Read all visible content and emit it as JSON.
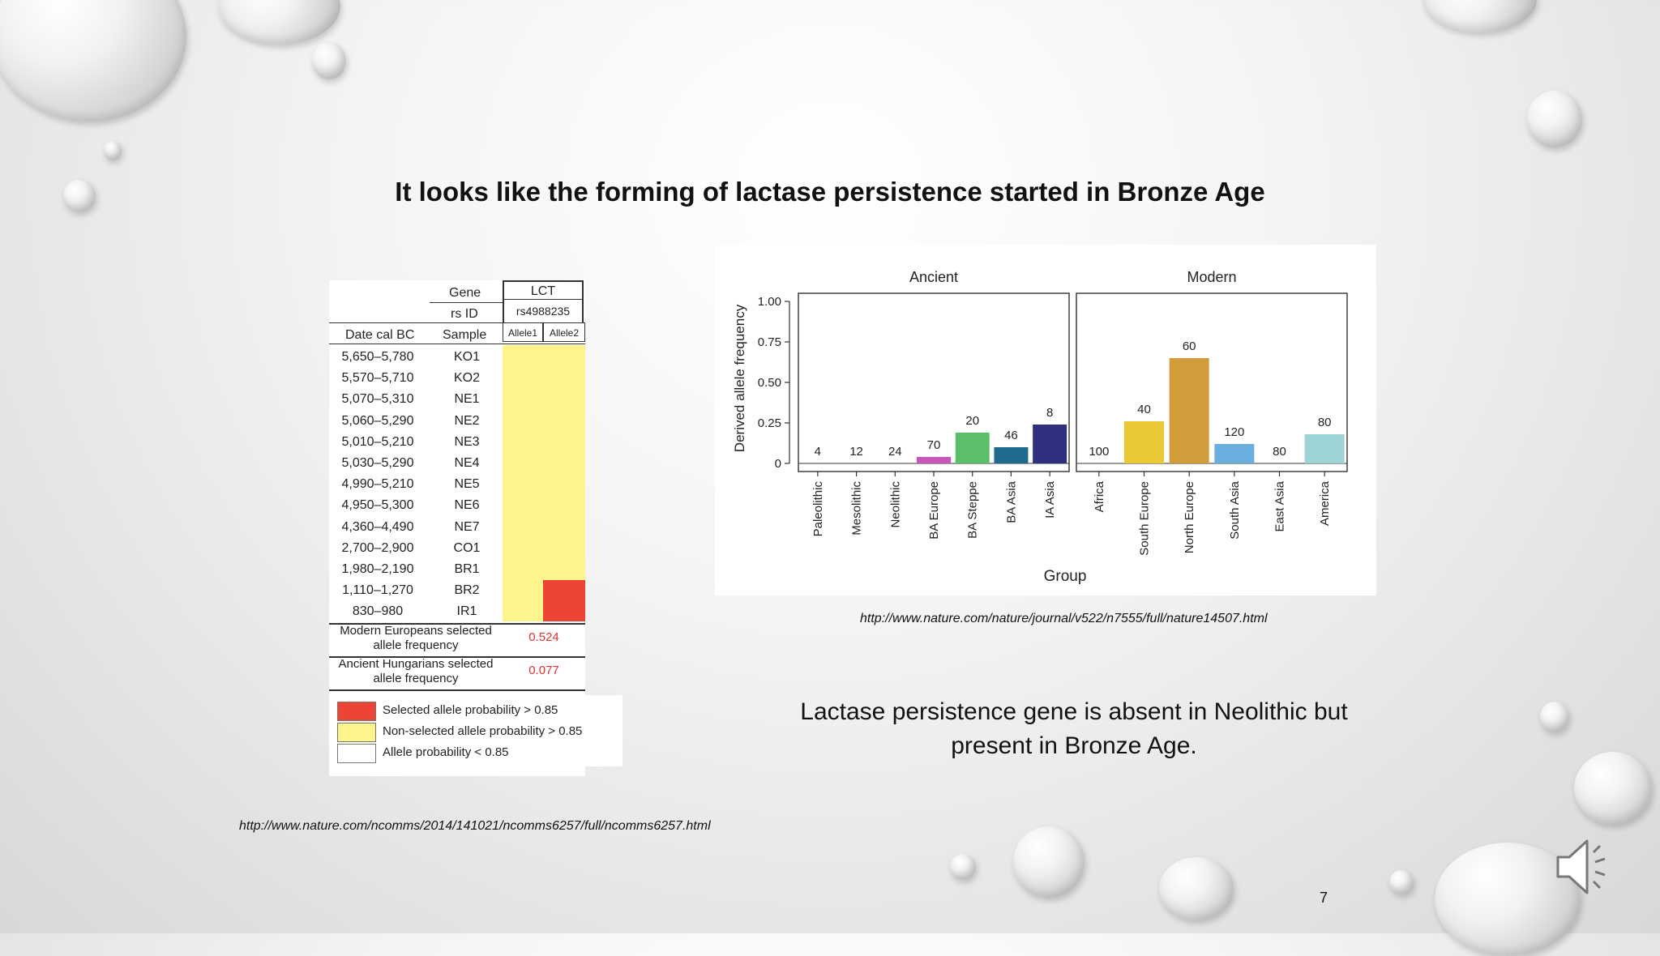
{
  "slide": {
    "title": "It looks like the forming of lactase persistence started in Bronze Age",
    "caption_line1": "Lactase persistence gene is absent in Neolithic but",
    "caption_line2": "present in Bronze Age.",
    "source_right": "http://www.nature.com/nature/journal/v522/n7555/full/nature14507.html",
    "source_left": "http://www.nature.com/ncomms/2014/141021/ncomms6257/full/ncomms6257.html",
    "page_number": "7",
    "speaker_icon": "speaker-icon"
  },
  "table": {
    "gene_label": "Gene",
    "gene_value": "LCT",
    "rsid_label": "rs ID",
    "rsid_value": "rs4988235",
    "date_header": "Date cal BC",
    "sample_header": "Sample",
    "allele1_header": "Allele1",
    "allele2_header": "Allele2",
    "rows": [
      {
        "date": "5,650–5,780",
        "sample": "KO1"
      },
      {
        "date": "5,570–5,710",
        "sample": "KO2"
      },
      {
        "date": "5,070–5,310",
        "sample": "NE1"
      },
      {
        "date": "5,060–5,290",
        "sample": "NE2"
      },
      {
        "date": "5,010–5,210",
        "sample": "NE3"
      },
      {
        "date": "5,030–5,290",
        "sample": "NE4"
      },
      {
        "date": "4,990–5,210",
        "sample": "NE5"
      },
      {
        "date": "4,950–5,300",
        "sample": "NE6"
      },
      {
        "date": "4,360–4,490",
        "sample": "NE7"
      },
      {
        "date": "2,700–2,900",
        "sample": "CO1"
      },
      {
        "date": "1,980–2,190",
        "sample": "BR1"
      },
      {
        "date": "1,110–1,270",
        "sample": "BR2"
      },
      {
        "date": "830–980",
        "sample": "IR1"
      }
    ],
    "modern_label_1": "Modern Europeans selected",
    "modern_label_2": "allele frequency",
    "modern_value": "0.524",
    "ancient_label_1": "Ancient Hungarians selected",
    "ancient_label_2": "allele frequency",
    "ancient_value": "0.077",
    "legend": [
      {
        "label": "Selected allele probability > 0.85",
        "color": "#ee4433"
      },
      {
        "label": "Non-selected allele probability > 0.85",
        "color": "#fdf48c"
      },
      {
        "label": "Allele probability < 0.85",
        "color": "#ffffff"
      }
    ],
    "colors": {
      "selected": "#ee4433",
      "non_selected": "#fdf48c"
    }
  },
  "chart_data": {
    "type": "bar",
    "ylabel": "Derived allele frequency",
    "xlabel": "Group",
    "ylim": [
      0,
      1.0
    ],
    "yticks": [
      "0",
      "0.25",
      "0.50",
      "0.75",
      "1.00"
    ],
    "ytick_values": [
      0,
      0.25,
      0.5,
      0.75,
      1.0
    ],
    "panels": [
      {
        "title": "Ancient",
        "bars": [
          {
            "category": "Paleolithic",
            "value": 0,
            "label": "4",
            "color": "#cc44aa"
          },
          {
            "category": "Mesolithic",
            "value": 0,
            "label": "12",
            "color": "#cc44aa"
          },
          {
            "category": "Neolithic",
            "value": 0,
            "label": "24",
            "color": "#cc44aa"
          },
          {
            "category": "BA Europe",
            "value": 0.04,
            "label": "70",
            "color": "#cc55bb"
          },
          {
            "category": "BA Steppe",
            "value": 0.19,
            "label": "20",
            "color": "#5bbf6a"
          },
          {
            "category": "BA Asia",
            "value": 0.1,
            "label": "46",
            "color": "#1f6b8e"
          },
          {
            "category": "IA Asia",
            "value": 0.24,
            "label": "8",
            "color": "#2f2f7f"
          }
        ]
      },
      {
        "title": "Modern",
        "bars": [
          {
            "category": "Africa",
            "value": 0,
            "label": "100",
            "color": "#e7c633"
          },
          {
            "category": "South Europe",
            "value": 0.26,
            "label": "40",
            "color": "#e9c935"
          },
          {
            "category": "North Europe",
            "value": 0.65,
            "label": "60",
            "color": "#d39c3a"
          },
          {
            "category": "South Asia",
            "value": 0.12,
            "label": "120",
            "color": "#6aaee0"
          },
          {
            "category": "East Asia",
            "value": 0,
            "label": "80",
            "color": "#6aaee0"
          },
          {
            "category": "America",
            "value": 0.18,
            "label": "80",
            "color": "#9ed4d6"
          }
        ]
      }
    ]
  }
}
